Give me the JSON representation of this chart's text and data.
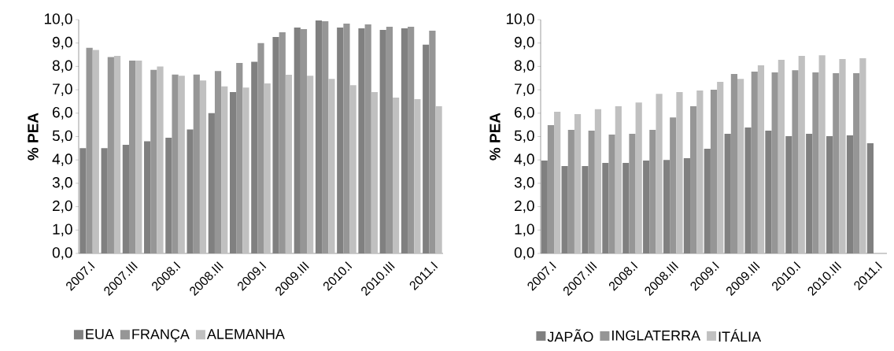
{
  "chart_data": [
    {
      "type": "bar",
      "ylabel": "% PEA",
      "legend": "bottom",
      "categories": [
        "2007.I",
        null,
        "2007.III",
        null,
        "2008.I",
        null,
        "2008.III",
        null,
        "2009.I",
        null,
        "2009.III",
        null,
        "2010.I",
        null,
        "2010.III",
        null,
        "2011.I"
      ],
      "ylim": [
        0,
        10
      ],
      "yticks": [
        {
          "value": 0,
          "label": "0,0"
        },
        {
          "value": 1,
          "label": "1,0"
        },
        {
          "value": 2,
          "label": "2,0"
        },
        {
          "value": 3,
          "label": "3,0"
        },
        {
          "value": 4,
          "label": "4,0"
        },
        {
          "value": 5,
          "label": "5,0"
        },
        {
          "value": 6,
          "label": "6,0"
        },
        {
          "value": 7,
          "label": "7,0"
        },
        {
          "value": 8,
          "label": "8,0"
        },
        {
          "value": 9,
          "label": "9,0"
        },
        {
          "value": 10,
          "label": "10,0"
        }
      ],
      "series": [
        {
          "name": "EUA",
          "color": "#808080",
          "values": [
            4.5,
            4.5,
            4.65,
            4.8,
            4.95,
            5.3,
            6.0,
            6.9,
            8.2,
            9.26,
            9.66,
            9.97,
            9.66,
            9.63,
            9.56,
            9.63,
            8.93
          ]
        },
        {
          "name": "FRANÇA",
          "color": "#969696",
          "values": [
            8.8,
            8.4,
            8.25,
            7.85,
            7.65,
            7.65,
            7.8,
            8.15,
            9.0,
            9.46,
            9.6,
            9.93,
            9.83,
            9.8,
            9.7,
            9.7,
            9.53
          ]
        },
        {
          "name": "ALEMANHA",
          "color": "#c0c0c0",
          "values": [
            8.7,
            8.45,
            8.25,
            8.0,
            7.6,
            7.4,
            7.15,
            7.1,
            7.27,
            7.64,
            7.6,
            7.47,
            7.2,
            6.9,
            6.67,
            6.6,
            6.3
          ]
        }
      ]
    },
    {
      "type": "bar",
      "ylabel": "% PEA",
      "legend": "bottom",
      "categories": [
        "2007.I",
        null,
        "2007.III",
        null,
        "2008.I",
        null,
        "2008.III",
        null,
        "2009.I",
        null,
        "2009.III",
        null,
        "2010.I",
        null,
        "2010.III",
        null,
        "2011.I"
      ],
      "ylim": [
        0,
        10
      ],
      "yticks": [
        {
          "value": 0,
          "label": "0,0"
        },
        {
          "value": 1,
          "label": "1,0"
        },
        {
          "value": 2,
          "label": "2,0"
        },
        {
          "value": 3,
          "label": "3,0"
        },
        {
          "value": 4,
          "label": "4,0"
        },
        {
          "value": 5,
          "label": "5,0"
        },
        {
          "value": 6,
          "label": "6,0"
        },
        {
          "value": 7,
          "label": "7,0"
        },
        {
          "value": 8,
          "label": "8,0"
        },
        {
          "value": 9,
          "label": "9,0"
        },
        {
          "value": 10,
          "label": "10,0"
        }
      ],
      "series": [
        {
          "name": "JAPÃO",
          "color": "#808080",
          "values": [
            3.97,
            3.74,
            3.74,
            3.87,
            3.87,
            3.97,
            4.0,
            4.07,
            4.48,
            5.12,
            5.39,
            5.25,
            5.02,
            5.12,
            5.02,
            5.05,
            4.71
          ]
        },
        {
          "name": "INGLATERRA",
          "color": "#969696",
          "values": [
            5.49,
            5.29,
            5.25,
            5.08,
            5.12,
            5.29,
            5.82,
            6.3,
            7.0,
            7.68,
            7.78,
            7.74,
            7.84,
            7.74,
            7.71,
            7.71,
            null
          ]
        },
        {
          "name": "ITÁLIA",
          "color": "#c0c0c0",
          "values": [
            6.06,
            5.96,
            6.17,
            6.3,
            6.46,
            6.83,
            6.9,
            6.97,
            7.34,
            7.47,
            8.05,
            8.28,
            8.45,
            8.48,
            8.32,
            8.35,
            null
          ]
        }
      ]
    }
  ]
}
